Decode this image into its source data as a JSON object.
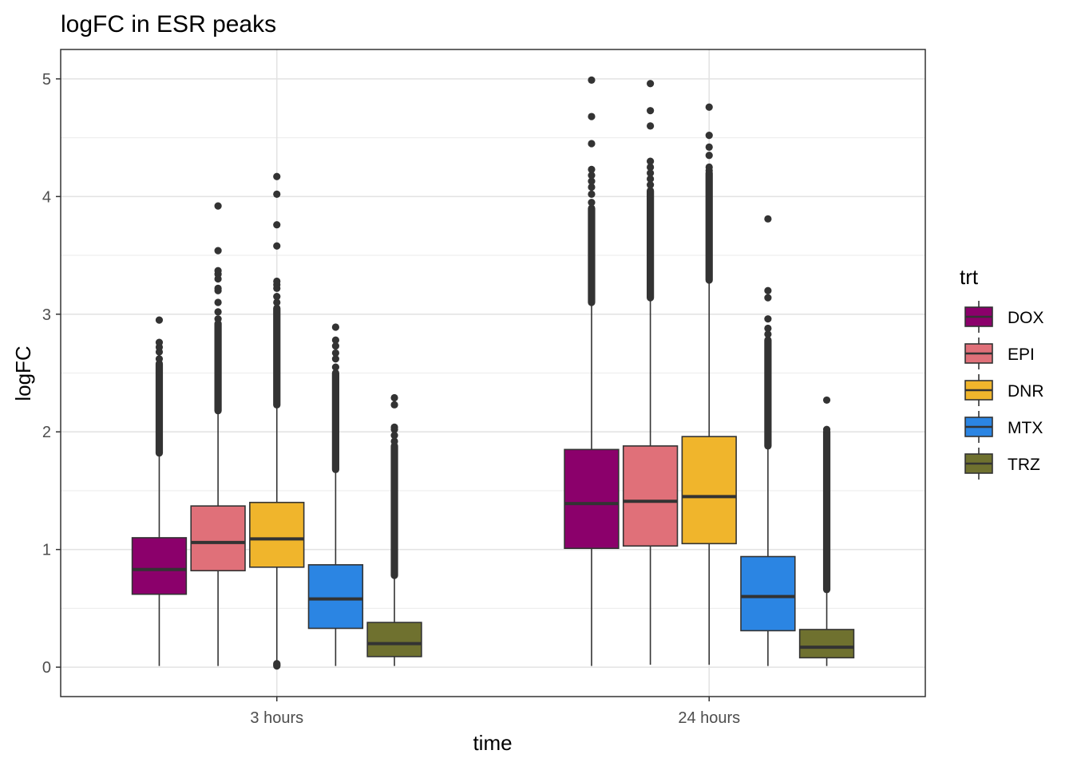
{
  "chart_data": {
    "type": "box",
    "title": "logFC in ESR peaks",
    "xlabel": "time",
    "ylabel": "logFC",
    "ylim": [
      -0.25,
      5.25
    ],
    "yticks": [
      0,
      1,
      2,
      3,
      4,
      5
    ],
    "grid": true,
    "categories": [
      "3 hours",
      "24 hours"
    ],
    "legend": {
      "title": "trt",
      "placement": "right",
      "entries": [
        "DOX",
        "EPI",
        "DNR",
        "MTX",
        "TRZ"
      ]
    },
    "series": [
      {
        "name": "DOX",
        "color": "#8B006B",
        "boxes": [
          {
            "whisker_low": 0.01,
            "q1": 0.62,
            "median": 0.83,
            "q3": 1.1,
            "whisker_high": 1.82,
            "outliers_dense": [
              1.82,
              2.58
            ],
            "outliers_sparse": [
              2.62,
              2.68,
              2.72,
              2.76,
              2.95
            ]
          },
          {
            "whisker_low": 0.01,
            "q1": 1.01,
            "median": 1.39,
            "q3": 1.85,
            "whisker_high": 3.1,
            "outliers_dense": [
              3.1,
              3.9
            ],
            "outliers_sparse": [
              3.95,
              4.02,
              4.08,
              4.13,
              4.18,
              4.23,
              4.45,
              4.68,
              4.99
            ]
          }
        ]
      },
      {
        "name": "EPI",
        "color": "#E07079",
        "boxes": [
          {
            "whisker_low": 0.01,
            "q1": 0.82,
            "median": 1.06,
            "q3": 1.37,
            "whisker_high": 2.18,
            "outliers_dense": [
              2.18,
              2.92
            ],
            "outliers_sparse": [
              2.96,
              3.02,
              3.1,
              3.2,
              3.22,
              3.3,
              3.34,
              3.37,
              3.54,
              3.92
            ]
          },
          {
            "whisker_low": 0.02,
            "q1": 1.03,
            "median": 1.41,
            "q3": 1.88,
            "whisker_high": 3.14,
            "outliers_dense": [
              3.14,
              4.05
            ],
            "outliers_sparse": [
              4.1,
              4.15,
              4.2,
              4.25,
              4.3,
              4.6,
              4.73,
              4.96
            ]
          }
        ]
      },
      {
        "name": "DNR",
        "color": "#F0B52C",
        "boxes": [
          {
            "whisker_low": 0.02,
            "q1": 0.85,
            "median": 1.09,
            "q3": 1.4,
            "whisker_high": 2.23,
            "outliers_dense": [
              2.23,
              3.05
            ],
            "outliers_sparse": [
              0.01,
              0.02,
              0.03,
              3.1,
              3.15,
              3.22,
              3.25,
              3.28,
              3.58,
              3.76,
              4.02,
              4.17
            ]
          },
          {
            "whisker_low": 0.02,
            "q1": 1.05,
            "median": 1.45,
            "q3": 1.96,
            "whisker_high": 3.29,
            "outliers_dense": [
              3.29,
              4.2
            ],
            "outliers_sparse": [
              4.22,
              4.25,
              4.35,
              4.42,
              4.52,
              4.76
            ]
          }
        ]
      },
      {
        "name": "MTX",
        "color": "#2B85E3",
        "boxes": [
          {
            "whisker_low": 0.01,
            "q1": 0.33,
            "median": 0.58,
            "q3": 0.87,
            "whisker_high": 1.68,
            "outliers_dense": [
              1.68,
              2.5
            ],
            "outliers_sparse": [
              2.55,
              2.62,
              2.67,
              2.73,
              2.78,
              2.89
            ]
          },
          {
            "whisker_low": 0.01,
            "q1": 0.31,
            "median": 0.6,
            "q3": 0.94,
            "whisker_high": 1.88,
            "outliers_dense": [
              1.88,
              2.78
            ],
            "outliers_sparse": [
              2.83,
              2.88,
              2.96,
              3.14,
              3.2,
              3.81
            ]
          }
        ]
      },
      {
        "name": "TRZ",
        "color": "#6F712F",
        "boxes": [
          {
            "whisker_low": 0.01,
            "q1": 0.09,
            "median": 0.2,
            "q3": 0.38,
            "whisker_high": 0.78,
            "outliers_dense": [
              0.78,
              1.88
            ],
            "outliers_sparse": [
              1.92,
              1.97,
              2.02,
              2.04,
              2.23,
              2.29
            ]
          },
          {
            "whisker_low": 0.01,
            "q1": 0.08,
            "median": 0.17,
            "q3": 0.32,
            "whisker_high": 0.66,
            "outliers_dense": [
              0.66,
              2.0
            ],
            "outliers_sparse": [
              2.02,
              2.27
            ]
          }
        ]
      }
    ]
  }
}
